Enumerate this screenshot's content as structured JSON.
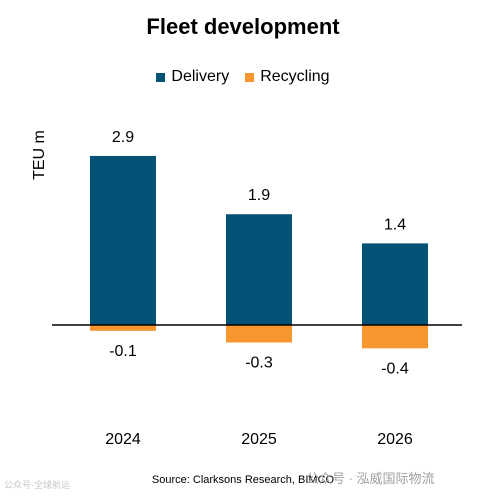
{
  "chart_data": {
    "type": "bar",
    "title": "Fleet development",
    "ylabel": "TEU m",
    "categories": [
      "2024",
      "2025",
      "2026"
    ],
    "series": [
      {
        "name": "Delivery",
        "values": [
          2.9,
          1.9,
          1.4
        ],
        "color": "#045377"
      },
      {
        "name": "Recycling",
        "values": [
          -0.1,
          -0.3,
          -0.4
        ],
        "color": "#f7962f"
      }
    ],
    "stacked": true,
    "ylim": [
      -0.4,
      3.0
    ],
    "legend": "top",
    "grid": false
  },
  "source": "Source: Clarksons Research, BIMCO",
  "watermark_left": "公众号·全球航运",
  "watermark_right": "公众号 · 泓威国际物流"
}
